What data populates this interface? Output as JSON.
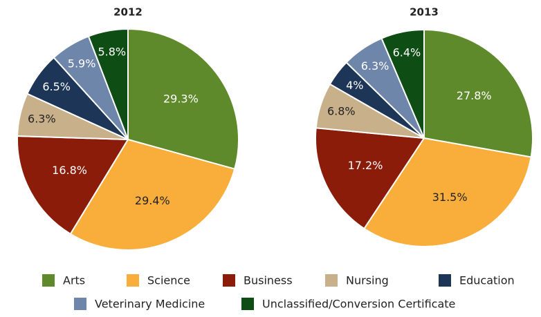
{
  "chart_data": [
    {
      "type": "pie",
      "title": "2012",
      "categories": [
        "Arts",
        "Science",
        "Business",
        "Nursing",
        "Education",
        "Veterinary Medicine",
        "Unclassified/Conversion Certificate"
      ],
      "values": [
        29.3,
        29.4,
        16.8,
        6.3,
        6.5,
        5.9,
        5.8
      ],
      "value_labels": [
        "29.3%",
        "29.4%",
        "16.8%",
        "6.3%",
        "6.5%",
        "5.9%",
        "5.8%"
      ],
      "colors": [
        "#5f8a2b",
        "#f9ae3c",
        "#8b1c0a",
        "#c8b08a",
        "#1d3557",
        "#6f86ab",
        "#0e4d14"
      ]
    },
    {
      "type": "pie",
      "title": "2013",
      "categories": [
        "Arts",
        "Science",
        "Business",
        "Nursing",
        "Education",
        "Veterinary Medicine",
        "Unclassified/Conversion Certificate"
      ],
      "values": [
        27.8,
        31.5,
        17.2,
        6.8,
        4,
        6.3,
        6.4
      ],
      "value_labels": [
        "27.8%",
        "31.5%",
        "17.2%",
        "6.8%",
        "4%",
        "6.3%",
        "6.4%"
      ],
      "colors": [
        "#5f8a2b",
        "#f9ae3c",
        "#8b1c0a",
        "#c8b08a",
        "#1d3557",
        "#6f86ab",
        "#0e4d14"
      ]
    }
  ]
}
